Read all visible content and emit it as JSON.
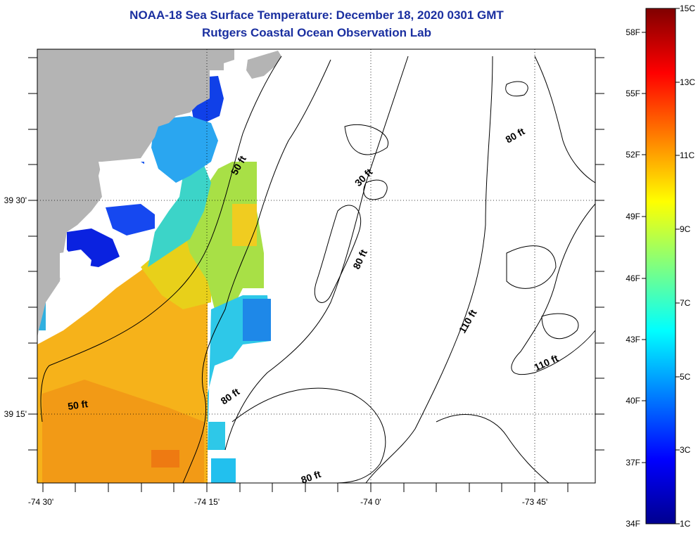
{
  "header": {
    "title": "NOAA-18 Sea Surface Temperature:  December 18, 2020 0301 GMT",
    "subtitle": "Rutgers Coastal Ocean Observation Lab"
  },
  "map": {
    "lon_labels": [
      "-74 30'",
      "-74 15'",
      "-74 0'",
      "-73 45'"
    ],
    "lat_labels": [
      "39 30'",
      "39 15'"
    ],
    "depth_labels": [
      "50 ft",
      "30 ft",
      "80 ft",
      "80 ft",
      "80 ft",
      "110 ft",
      "110 ft",
      "50 ft",
      "80 ft"
    ],
    "colors": {
      "land": "#b4b4b4",
      "no_data": "#ffffff",
      "contour": "#000000"
    }
  },
  "colorbar": {
    "fahrenheit_labels": [
      "58F",
      "55F",
      "52F",
      "49F",
      "46F",
      "43F",
      "40F",
      "37F",
      "34F"
    ],
    "celsius_labels": [
      "15C",
      "13C",
      "11C",
      "9C",
      "7C",
      "5C",
      "3C",
      "1C"
    ],
    "range_celsius": [
      1,
      15
    ]
  }
}
